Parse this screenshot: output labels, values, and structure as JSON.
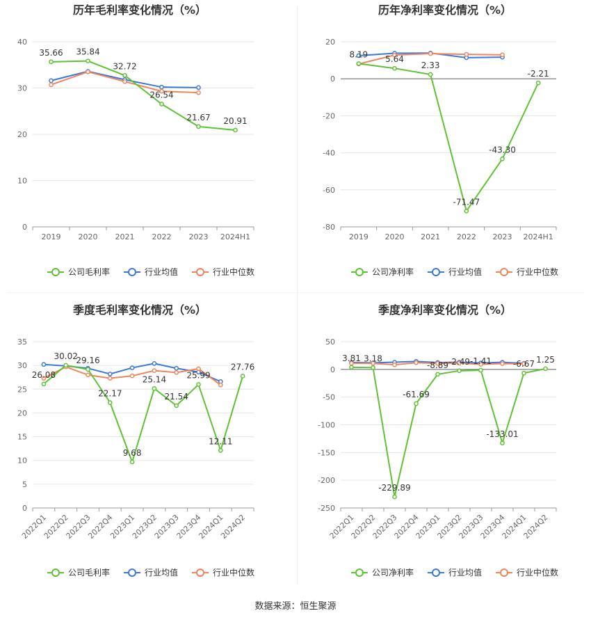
{
  "source": "数据来源：恒生聚源",
  "colors": {
    "company": "#5ec234",
    "avg": "#3a78dc",
    "median": "#f0845c",
    "grid": "#e6e6e6",
    "axis": "#999999"
  },
  "chart_data": [
    {
      "type": "line",
      "title": "历年毛利率变化情况（%）",
      "categories": [
        "2019",
        "2020",
        "2021",
        "2022",
        "2023",
        "2024H1"
      ],
      "ylim": [
        0,
        40
      ],
      "yticks": [
        0,
        10,
        20,
        30,
        40
      ],
      "legend_position": "bottom",
      "grid": true,
      "series": [
        {
          "name": "公司毛利率",
          "key": "company",
          "values": [
            35.66,
            35.84,
            32.72,
            26.54,
            21.67,
            20.91
          ],
          "labels": [
            "35.66",
            "35.84",
            "32.72",
            "26.54",
            "21.67",
            "20.91"
          ]
        },
        {
          "name": "行业均值",
          "key": "avg",
          "values": [
            31.6,
            33.6,
            31.8,
            30.2,
            30.1,
            null
          ]
        },
        {
          "name": "行业中位数",
          "key": "median",
          "values": [
            30.7,
            33.5,
            31.4,
            29.3,
            29.0,
            null
          ]
        }
      ]
    },
    {
      "type": "line",
      "title": "历年净利率变化情况（%）",
      "categories": [
        "2019",
        "2020",
        "2021",
        "2022",
        "2023",
        "2024H1"
      ],
      "ylim": [
        -80,
        20
      ],
      "yticks": [
        -80,
        -60,
        -40,
        -20,
        0,
        20
      ],
      "legend_position": "bottom",
      "grid": true,
      "series": [
        {
          "name": "公司净利率",
          "key": "company",
          "values": [
            8.19,
            5.64,
            2.33,
            -71.47,
            -43.3,
            -2.21
          ],
          "labels": [
            "8.19",
            "5.64",
            "2.33",
            "-71.47",
            "-43.30",
            "-2.21"
          ]
        },
        {
          "name": "行业均值",
          "key": "avg",
          "values": [
            12.5,
            13.8,
            13.9,
            11.4,
            11.7,
            null
          ]
        },
        {
          "name": "行业中位数",
          "key": "median",
          "values": [
            8.0,
            12.8,
            13.6,
            13.2,
            12.9,
            null
          ]
        }
      ]
    },
    {
      "type": "line",
      "title": "季度毛利率变化情况（%）",
      "categories": [
        "2022Q1",
        "2022Q2",
        "2022Q3",
        "2022Q4",
        "2023Q1",
        "2023Q2",
        "2023Q3",
        "2023Q4",
        "2024Q1",
        "2024Q2"
      ],
      "ylim": [
        0,
        35
      ],
      "yticks": [
        0,
        5,
        10,
        15,
        20,
        25,
        30,
        35
      ],
      "legend_position": "bottom",
      "grid": true,
      "series": [
        {
          "name": "公司毛利率",
          "key": "company",
          "values": [
            26.08,
            30.02,
            29.16,
            22.17,
            9.68,
            25.14,
            21.54,
            25.99,
            12.11,
            27.76
          ],
          "labels": [
            "26.08",
            "30.02",
            "29.16",
            "22.17",
            "9.68",
            "25.14",
            "21.54",
            "25.99",
            "12.11",
            "27.76"
          ]
        },
        {
          "name": "行业均值",
          "key": "avg",
          "values": [
            30.2,
            29.9,
            29.4,
            28.2,
            29.5,
            30.4,
            29.4,
            28.6,
            26.6,
            null
          ]
        },
        {
          "name": "行业中位数",
          "key": "median",
          "values": [
            27.3,
            29.7,
            28.0,
            27.3,
            27.8,
            28.9,
            28.5,
            29.3,
            25.9,
            null
          ]
        }
      ]
    },
    {
      "type": "line",
      "title": "季度净利率变化情况（%）",
      "categories": [
        "2022Q1",
        "2022Q2",
        "2022Q3",
        "2022Q4",
        "2023Q1",
        "2023Q2",
        "2023Q3",
        "2023Q4",
        "2024Q1",
        "2024Q2"
      ],
      "ylim": [
        -250,
        50
      ],
      "yticks": [
        -250,
        -200,
        -150,
        -100,
        -50,
        0,
        50
      ],
      "legend_position": "bottom",
      "grid": true,
      "series": [
        {
          "name": "公司净利率",
          "key": "company",
          "values": [
            3.81,
            3.18,
            -229.89,
            -61.69,
            -8.89,
            -2.49,
            -1.41,
            -133.01,
            -6.67,
            1.25
          ],
          "labels": [
            "3.81",
            "3.18",
            "-229.89",
            "-61.69",
            "-8.89",
            "-2.49",
            "-1.41",
            "-133.01",
            "-6.67",
            "1.25"
          ]
        },
        {
          "name": "行业均值",
          "key": "avg",
          "values": [
            12.5,
            11.8,
            12.9,
            14.4,
            12.3,
            12.9,
            11.6,
            12.8,
            11.0,
            null
          ]
        },
        {
          "name": "行业中位数",
          "key": "median",
          "values": [
            10.9,
            11.0,
            8.3,
            12.0,
            10.7,
            11.2,
            9.1,
            10.4,
            10.2,
            null
          ]
        }
      ]
    }
  ]
}
